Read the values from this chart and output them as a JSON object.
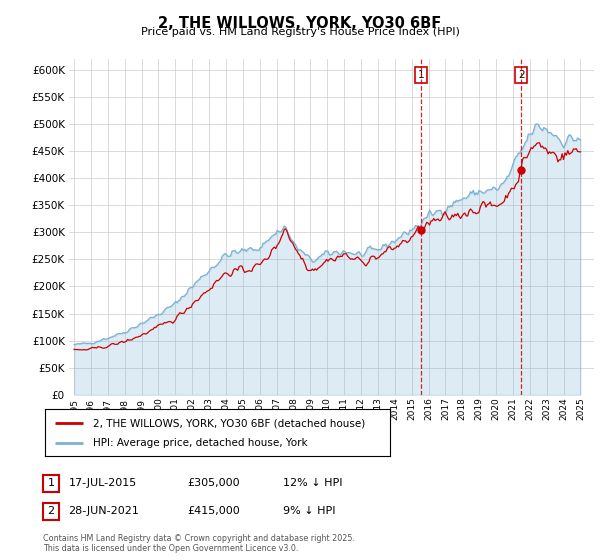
{
  "title": "2, THE WILLOWS, YORK, YO30 6BF",
  "subtitle": "Price paid vs. HM Land Registry's House Price Index (HPI)",
  "legend_line1": "2, THE WILLOWS, YORK, YO30 6BF (detached house)",
  "legend_line2": "HPI: Average price, detached house, York",
  "copyright": "Contains HM Land Registry data © Crown copyright and database right 2025.\nThis data is licensed under the Open Government Licence v3.0.",
  "sale1_date": "17-JUL-2015",
  "sale1_price": "£305,000",
  "sale1_hpi": "12% ↓ HPI",
  "sale2_date": "28-JUN-2021",
  "sale2_price": "£415,000",
  "sale2_hpi": "9% ↓ HPI",
  "sale1_year": 2015.54,
  "sale1_value": 305000,
  "sale2_year": 2021.49,
  "sale2_value": 415000,
  "red_color": "#cc0000",
  "blue_color": "#7ab0d4",
  "blue_fill": "#d0e8f5",
  "ylim_min": 0,
  "ylim_max": 620000,
  "xlim_min": 1994.7,
  "xlim_max": 2025.8,
  "background_color": "#ffffff",
  "grid_color": "#cccccc"
}
